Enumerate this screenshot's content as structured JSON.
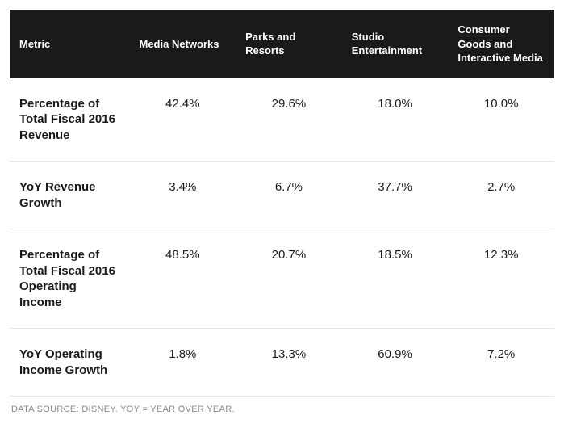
{
  "table": {
    "columns": [
      "Metric",
      "Media Networks",
      "Parks and Resorts",
      "Studio Entertainment",
      "Consumer Goods and Interactive Media"
    ],
    "rows": [
      {
        "metric": "Percentage of Total Fiscal 2016 Revenue",
        "values": [
          "42.4%",
          "29.6%",
          "18.0%",
          "10.0%"
        ]
      },
      {
        "metric": "YoY Revenue Growth",
        "values": [
          "3.4%",
          "6.7%",
          "37.7%",
          "2.7%"
        ]
      },
      {
        "metric": "Percentage of Total Fiscal 2016 Operating Income",
        "values": [
          "48.5%",
          "20.7%",
          "18.5%",
          "12.3%"
        ]
      },
      {
        "metric": "YoY Operating Income Growth",
        "values": [
          "1.8%",
          "13.3%",
          "60.9%",
          "7.2%"
        ]
      }
    ],
    "header_bg": "#1a1a1a",
    "header_color": "#ffffff",
    "body_bg": "#ffffff",
    "border_color": "#e5e5e5",
    "header_fontsize": 13,
    "metric_fontsize": 15,
    "value_fontsize": 15
  },
  "footnote": "DATA SOURCE: DISNEY. YOY = YEAR OVER YEAR."
}
